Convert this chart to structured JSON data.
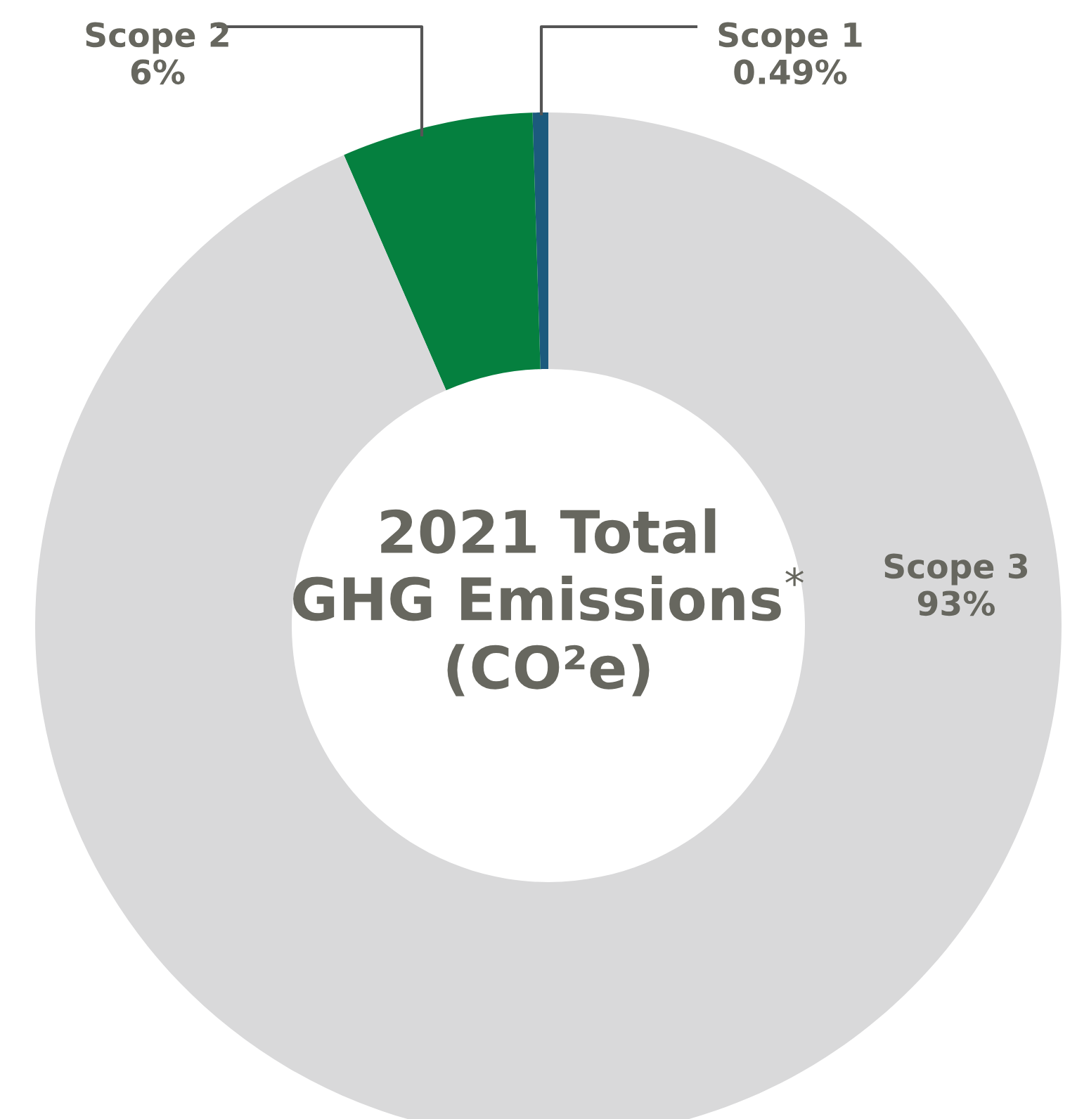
{
  "chart_data": {
    "type": "donut",
    "title": "2021 Total\nGHG Emissions$^{*}$\n(CO²e)",
    "categories": [
      "Scope 1",
      "Scope 2",
      "Scope 3"
    ],
    "values": [
      0.49,
      6,
      93
    ],
    "value_labels": [
      "0.49%",
      "6%",
      "93%"
    ],
    "colors": [
      "#1c5a7d",
      "#05803f",
      "#d9d9da"
    ],
    "legend": false
  }
}
